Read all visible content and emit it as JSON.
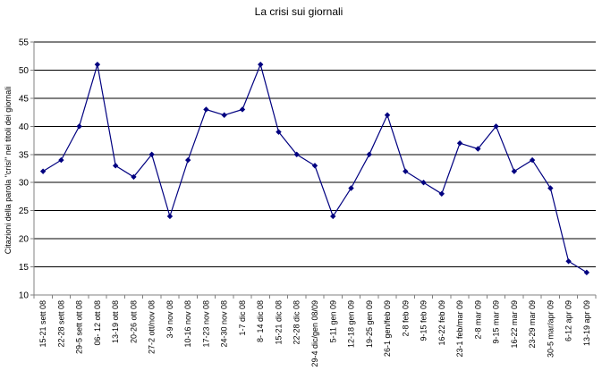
{
  "chart_data": {
    "type": "line",
    "title": "La crisi sui giornali",
    "ylabel": "Citazioni della parola \"crisi\" nei titoli dei giornali",
    "xlabel": "",
    "ylim": [
      10,
      55
    ],
    "yticks": [
      10,
      15,
      20,
      25,
      30,
      35,
      40,
      45,
      50,
      55
    ],
    "grid": "horizontal",
    "legend": "none",
    "categories": [
      "15-21 sett 08",
      "22-28 sett 08",
      "29-5 sett ott 08",
      "06- 12 ott 08",
      "13-19 ott 08",
      "20-26 ott 08",
      "27-2 ott/nov 08",
      "3-9 nov 08",
      "10-16 nov 08",
      "17-23 nov 08",
      "24-30 nov 08",
      "1-7 dic 08",
      "8- 14 dic 08",
      "15-21 dic 08",
      "22-28 dic 08",
      "29-4 dic/gen 08/09",
      "5-11 gen 09",
      "12-18 gen 09",
      "19-25 gen 09",
      "26-1 gen/feb 09",
      "2-8 feb 09",
      "9-15 feb 09",
      "16-22 feb 09",
      "23-1 feb/mar 09",
      "2-8 mar 09",
      "9-15 mar 09",
      "16-22 mar 09",
      "23-29 mar 09",
      "30-5 mar/apr 09",
      "6-12 apr 09",
      "13-19 apr 09"
    ],
    "values": [
      32,
      34,
      40,
      51,
      33,
      31,
      35,
      24,
      34,
      43,
      42,
      43,
      51,
      39,
      35,
      33,
      24,
      29,
      35,
      42,
      32,
      30,
      28,
      37,
      36,
      40,
      32,
      34,
      29,
      16,
      14
    ],
    "colors": {
      "line": "#000080",
      "marker": "#000080",
      "grid": "#000000",
      "axis": "#808080"
    }
  }
}
